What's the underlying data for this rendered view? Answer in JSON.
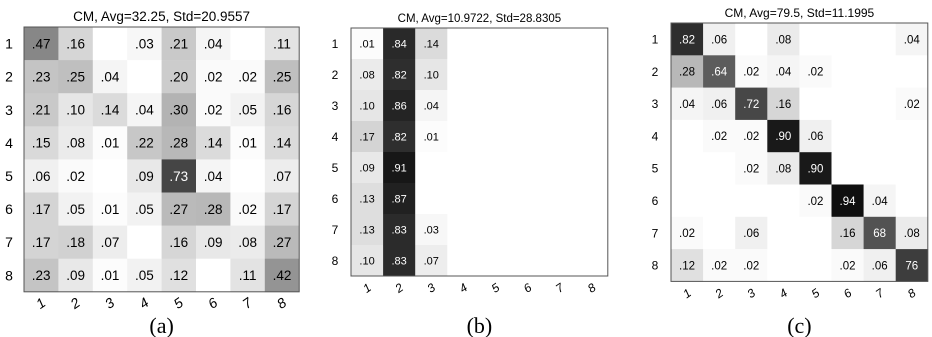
{
  "chart_data": [
    {
      "type": "heatmap",
      "title": "CM, Avg=32.25, Std=20.9557",
      "caption": "(a)",
      "row_labels": [
        "1",
        "2",
        "3",
        "4",
        "5",
        "6",
        "7",
        "8"
      ],
      "col_labels": [
        "1",
        "2",
        "3",
        "4",
        "5",
        "6",
        "7",
        "8"
      ],
      "cells": [
        [
          ".47",
          ".16",
          "",
          ".03",
          ".21",
          ".04",
          "",
          ".11"
        ],
        [
          ".23",
          ".25",
          ".04",
          "",
          ".20",
          ".02",
          ".02",
          ".25"
        ],
        [
          ".21",
          ".10",
          ".14",
          ".04",
          ".30",
          ".02",
          ".05",
          ".16"
        ],
        [
          ".15",
          ".08",
          ".01",
          ".22",
          ".28",
          ".14",
          ".01",
          ".14"
        ],
        [
          ".06",
          ".02",
          "",
          ".09",
          ".73",
          ".04",
          "",
          ".07"
        ],
        [
          ".17",
          ".05",
          ".01",
          ".05",
          ".27",
          ".28",
          ".02",
          ".17"
        ],
        [
          ".17",
          ".18",
          ".07",
          "",
          ".16",
          ".09",
          ".08",
          ".27"
        ],
        [
          ".23",
          ".09",
          ".01",
          ".05",
          ".12",
          "",
          ".11",
          ".42"
        ]
      ]
    },
    {
      "type": "heatmap",
      "title": "CM, Avg=10.9722, Std=28.8305",
      "caption": "(b)",
      "row_labels": [
        "1",
        "2",
        "3",
        "4",
        "5",
        "6",
        "7",
        "8"
      ],
      "col_labels": [
        "1",
        "2",
        "3",
        "4",
        "5",
        "6",
        "7",
        "8"
      ],
      "cells": [
        [
          ".01",
          ".84",
          ".14",
          "",
          "",
          "",
          "",
          ""
        ],
        [
          ".08",
          ".82",
          ".10",
          "",
          "",
          "",
          "",
          ""
        ],
        [
          ".10",
          ".86",
          ".04",
          "",
          "",
          "",
          "",
          ""
        ],
        [
          ".17",
          ".82",
          ".01",
          "",
          "",
          "",
          "",
          ""
        ],
        [
          ".09",
          ".91",
          "",
          "",
          "",
          "",
          "",
          ""
        ],
        [
          ".13",
          ".87",
          "",
          "",
          "",
          "",
          "",
          ""
        ],
        [
          ".13",
          ".83",
          ".03",
          "",
          "",
          "",
          "",
          ""
        ],
        [
          ".10",
          ".83",
          ".07",
          "",
          "",
          "",
          "",
          ""
        ]
      ]
    },
    {
      "type": "heatmap",
      "title": "CM, Avg=79.5, Std=11.1995",
      "caption": "(c)",
      "row_labels": [
        "1",
        "2",
        "3",
        "4",
        "5",
        "6",
        "7",
        "8"
      ],
      "col_labels": [
        "1",
        "2",
        "3",
        "4",
        "5",
        "6",
        "7",
        "8"
      ],
      "cells": [
        [
          ".82",
          ".06",
          "",
          ".08",
          "",
          "",
          "",
          ".04"
        ],
        [
          ".28",
          ".64",
          ".02",
          ".04",
          ".02",
          "",
          "",
          ""
        ],
        [
          ".04",
          ".06",
          ".72",
          ".16",
          "",
          "",
          "",
          ".02"
        ],
        [
          "",
          ".02",
          ".02",
          ".90",
          ".06",
          "",
          "",
          ""
        ],
        [
          "",
          "",
          ".02",
          ".08",
          ".90",
          "",
          "",
          ""
        ],
        [
          "",
          "",
          "",
          "",
          ".02",
          ".94",
          ".04",
          ""
        ],
        [
          ".02",
          "",
          ".06",
          "",
          "",
          ".16",
          "68",
          ".08"
        ],
        [
          ".12",
          ".02",
          ".02",
          "",
          "",
          ".02",
          ".06",
          "76"
        ]
      ]
    }
  ]
}
